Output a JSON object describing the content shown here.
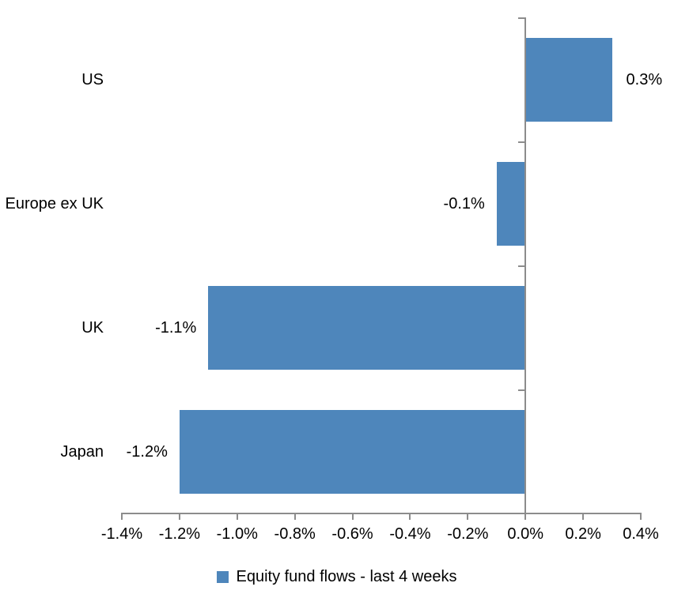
{
  "chart_data": {
    "type": "bar",
    "orientation": "horizontal",
    "title": "",
    "categories": [
      "US",
      "Europe ex UK",
      "UK",
      "Japan"
    ],
    "series": [
      {
        "name": "Equity fund flows - last 4 weeks",
        "values": [
          0.3,
          -0.1,
          -1.1,
          -1.2
        ],
        "value_labels": [
          "0.3%",
          "-0.1%",
          "-1.1%",
          "-1.2%"
        ]
      }
    ],
    "x_axis": {
      "min": -1.4,
      "max": 0.4,
      "tick_step": 0.2,
      "tick_labels": [
        "-1.4%",
        "-1.2%",
        "-1.0%",
        "-0.8%",
        "-0.6%",
        "-0.4%",
        "-0.2%",
        "0.0%",
        "0.2%",
        "0.4%"
      ],
      "unit": "percent"
    },
    "legend": {
      "position": "bottom",
      "entries": [
        {
          "label": "Equity fund flows - last 4 weeks",
          "color": "#4E86BB"
        }
      ]
    },
    "grid": false,
    "colors": {
      "bar": "#4E86BB",
      "axis": "#8C8C8C",
      "text": "#000000",
      "background": "#FFFFFF"
    }
  }
}
